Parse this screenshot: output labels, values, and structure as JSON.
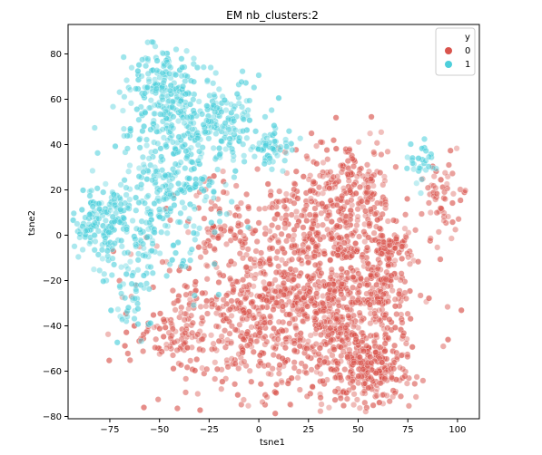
{
  "chart_data": {
    "type": "scatter",
    "title": "EM nb_clusters:2",
    "xlabel": "tsne1",
    "ylabel": "tsne2",
    "xlim": [
      -96,
      111
    ],
    "ylim": [
      -81,
      93
    ],
    "xticks": [
      -75,
      -50,
      -25,
      0,
      25,
      50,
      75,
      100
    ],
    "yticks": [
      -80,
      -60,
      -40,
      -20,
      0,
      20,
      40,
      60,
      80
    ],
    "legend": {
      "title": "y",
      "placement": "top-right",
      "entries": [
        {
          "label": "0",
          "color": "#d9544d"
        },
        {
          "label": "1",
          "color": "#4dcfdb"
        }
      ]
    },
    "series": [
      {
        "name": "0",
        "color": "#d9544d",
        "clusters": [
          {
            "cx": 12,
            "cy": -30,
            "sx": 30,
            "sy": 22,
            "n": 900
          },
          {
            "cx": 28,
            "cy": 5,
            "sx": 14,
            "sy": 15,
            "n": 200
          },
          {
            "cx": 50,
            "cy": 20,
            "sx": 10,
            "sy": 12,
            "n": 160
          },
          {
            "cx": 45,
            "cy": -30,
            "sx": 12,
            "sy": 18,
            "n": 220
          },
          {
            "cx": 57,
            "cy": -60,
            "sx": 10,
            "sy": 8,
            "n": 200
          },
          {
            "cx": 65,
            "cy": -20,
            "sx": 6,
            "sy": 15,
            "n": 110
          },
          {
            "cx": 70,
            "cy": -5,
            "sx": 5,
            "sy": 5,
            "n": 40
          },
          {
            "cx": 93,
            "cy": 15,
            "sx": 5,
            "sy": 8,
            "n": 55
          },
          {
            "cx": -22,
            "cy": 5,
            "sx": 7,
            "sy": 10,
            "n": 40
          },
          {
            "cx": -45,
            "cy": -45,
            "sx": 10,
            "sy": 6,
            "n": 60
          }
        ]
      },
      {
        "name": "1",
        "color": "#4dcfdb",
        "clusters": [
          {
            "cx": -45,
            "cy": 25,
            "sx": 14,
            "sy": 18,
            "n": 300
          },
          {
            "cx": -50,
            "cy": 65,
            "sx": 9,
            "sy": 10,
            "n": 180
          },
          {
            "cx": -20,
            "cy": 50,
            "sx": 10,
            "sy": 9,
            "n": 150
          },
          {
            "cx": -78,
            "cy": 5,
            "sx": 8,
            "sy": 9,
            "n": 160
          },
          {
            "cx": 5,
            "cy": 40,
            "sx": 6,
            "sy": 6,
            "n": 60
          },
          {
            "cx": -65,
            "cy": -30,
            "sx": 5,
            "sy": 10,
            "n": 40
          },
          {
            "cx": 83,
            "cy": 30,
            "sx": 6,
            "sy": 5,
            "n": 30
          },
          {
            "cx": -55,
            "cy": -5,
            "sx": 6,
            "sy": 7,
            "n": 40
          }
        ]
      }
    ]
  }
}
